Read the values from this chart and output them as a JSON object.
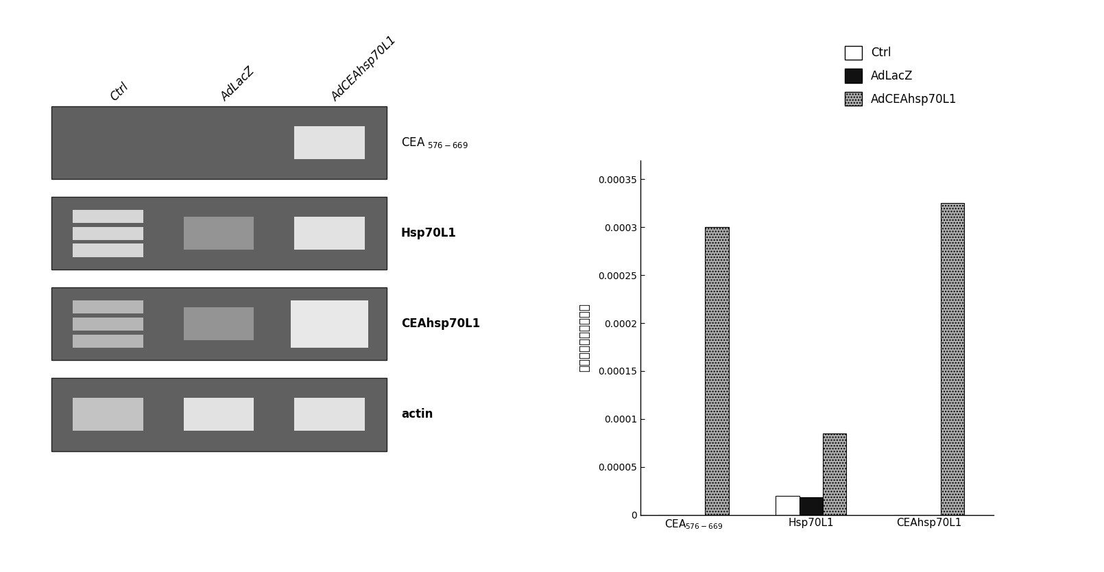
{
  "series": {
    "Ctrl": [
      0.0,
      2e-05,
      0.0
    ],
    "AdLacZ": [
      0.0,
      1.8e-05,
      0.0
    ],
    "AdCEAhsp70L1": [
      0.0003,
      8.5e-05,
      0.000325
    ]
  },
  "series_order": [
    "Ctrl",
    "AdLacZ",
    "AdCEAhsp70L1"
  ],
  "colors": {
    "Ctrl": "#FFFFFF",
    "AdLacZ": "#111111",
    "AdCEAhsp70L1": "#AAAAAA"
  },
  "edgecolors": {
    "Ctrl": "#000000",
    "AdLacZ": "#000000",
    "AdCEAhsp70L1": "#000000"
  },
  "ylim": [
    0,
    0.00037
  ],
  "yticks": [
    0,
    5e-05,
    0.0001,
    0.00015,
    0.0002,
    0.00025,
    0.0003,
    0.00035
  ],
  "ylabel": "与肌动蛋白相比的倍数",
  "bar_width": 0.2,
  "col_labels": [
    "Ctrl",
    "AdLacZ",
    "AdCEAhsp70L1"
  ],
  "row_labels": [
    "CEA $_{576-669}$",
    "Hsp70L1",
    "CEAhsp70L1",
    "actin"
  ],
  "background_color": "#FFFFFF",
  "gel_bg": "#606060",
  "gel_dark": "#404040",
  "gel_bright": "#EEEEEE",
  "gel_medium": "#CCCCCC",
  "gel_dim": "#999999"
}
